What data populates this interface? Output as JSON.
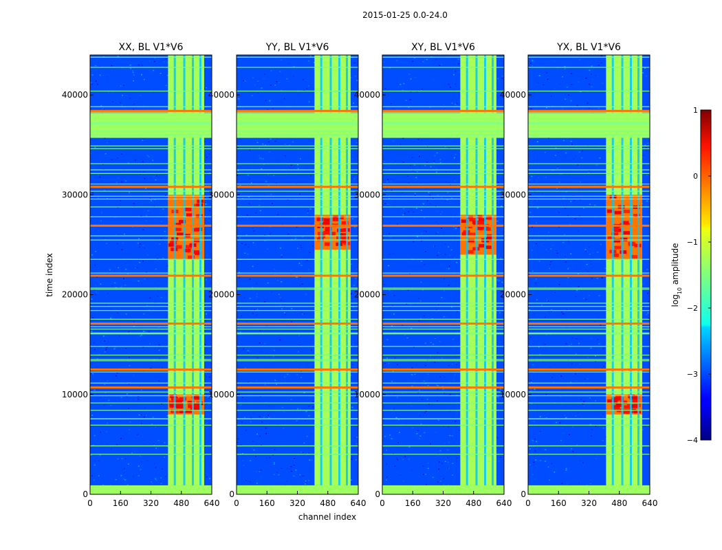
{
  "figure": {
    "suptitle": "2015-01-25 0.0-24.0",
    "xlabel": "channel index",
    "ylabel": "time index"
  },
  "chart_data": {
    "type": "heatmap",
    "title": "2015-01-25 0.0-24.0",
    "xlabel": "channel index",
    "ylabel": "time index",
    "xlim": [
      0,
      640
    ],
    "ylim": [
      0,
      44000
    ],
    "x_ticks": [
      0,
      160,
      320,
      480,
      640
    ],
    "y_ticks": [
      0,
      10000,
      20000,
      30000,
      40000
    ],
    "panels": [
      {
        "title": "XX, BL V1*V6",
        "center_high": [
          30000,
          23500
        ],
        "center_high2": [
          10000,
          8000
        ]
      },
      {
        "title": "YY, BL V1*V6",
        "center_high": [
          28000,
          24500
        ],
        "center_high2": null
      },
      {
        "title": "XY, BL V1*V6",
        "center_high": [
          28000,
          24000
        ],
        "center_high2": null
      },
      {
        "title": "YX, BL V1*V6",
        "center_high": [
          30000,
          23500
        ],
        "center_high2": [
          10000,
          8000
        ]
      }
    ],
    "background_level": -3.0,
    "active_band_channels": [
      410,
      600
    ],
    "active_band_level": -1.3,
    "flagged_time_ranges": [
      [
        0,
        900
      ],
      [
        35700,
        38200
      ]
    ],
    "flagged_level": -1.35,
    "strong_rfi_lines": [
      12500,
      10700,
      17100,
      21900,
      26900,
      30800,
      38400
    ],
    "colorbar": {
      "label": "log",
      "label_sub": "10",
      "label_rest": " amplitude",
      "vmin": -4,
      "vmax": 1,
      "ticks": [
        1,
        0,
        -1,
        -2,
        -3,
        -4
      ]
    }
  }
}
